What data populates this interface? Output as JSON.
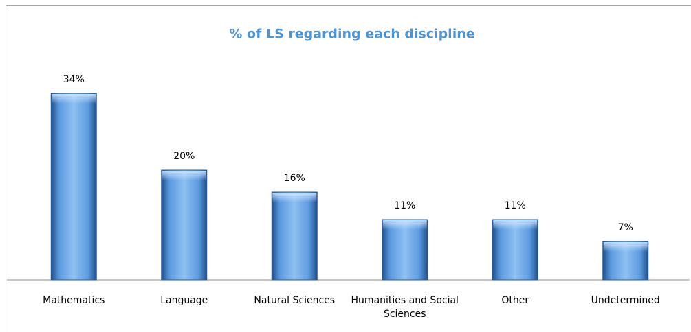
{
  "chart_data": {
    "type": "bar",
    "title": "% of LS regarding each discipline",
    "categories": [
      "Mathematics",
      "Language",
      "Natural Sciences",
      "Humanities and Social Sciences",
      "Other",
      "Undetermined"
    ],
    "values": [
      34,
      20,
      16,
      11,
      11,
      7
    ],
    "value_labels": [
      "34%",
      "20%",
      "16%",
      "11%",
      "11%",
      "7%"
    ],
    "color": "#4f8fd6"
  }
}
